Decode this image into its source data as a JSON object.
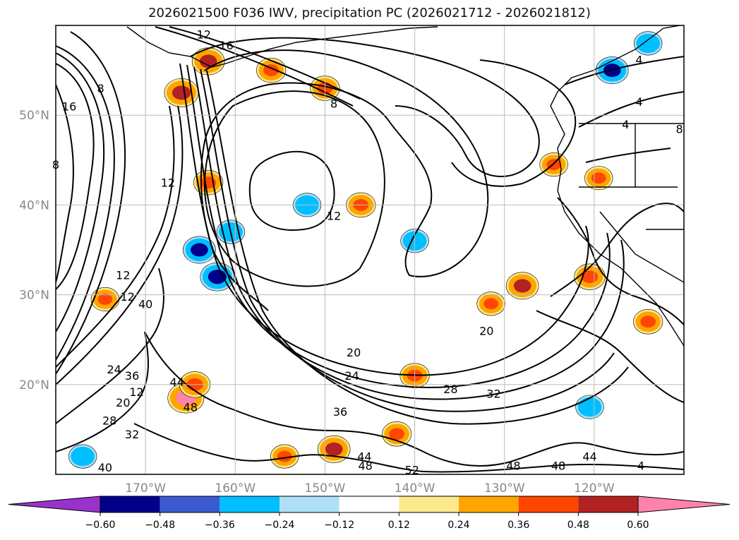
{
  "chart_data": {
    "type": "heatmap",
    "title": "2026021500 F036 IWV, precipitation PC (2026021712 - 2026021812)",
    "projection": "map",
    "lon_range": [
      -180,
      -110
    ],
    "lat_range": [
      10,
      60
    ],
    "lon_ticks": [
      "170°W",
      "160°W",
      "150°W",
      "140°W",
      "130°W",
      "120°W"
    ],
    "lon_tick_values": [
      -170,
      -160,
      -150,
      -140,
      -130,
      -120
    ],
    "lat_ticks": [
      "50°N",
      "40°N",
      "30°N",
      "20°N"
    ],
    "lat_tick_values": [
      50,
      40,
      30,
      20
    ],
    "grid": true,
    "colorbar": {
      "orientation": "horizontal",
      "extend": "both",
      "levels": [
        -0.6,
        -0.48,
        -0.36,
        -0.24,
        -0.12,
        0.12,
        0.24,
        0.36,
        0.48,
        0.6
      ],
      "tick_labels": [
        "−0.60",
        "−0.48",
        "−0.36",
        "−0.24",
        "−0.12",
        "0.12",
        "0.24",
        "0.36",
        "0.48",
        "0.60"
      ],
      "colors": [
        "#9932CC",
        "#00008B",
        "#3A5BD0",
        "#00BFFF",
        "#ADE0F7",
        "#FFFFFF",
        "#FCE98C",
        "#FFA500",
        "#FF4500",
        "#B22222",
        "#FF82AB"
      ]
    },
    "contour_labels": [
      "12",
      "16",
      "8",
      "4",
      "4",
      "4",
      "8",
      "12",
      "12",
      "16",
      "8",
      "8",
      "12",
      "12",
      "12",
      "40",
      "36",
      "24",
      "20",
      "28",
      "32",
      "44",
      "48",
      "40",
      "20",
      "24",
      "28",
      "32",
      "36",
      "20",
      "44",
      "48",
      "52",
      "48",
      "48",
      "44",
      "4"
    ],
    "contour_label_lonlat": [
      [
        -163.5,
        59
      ],
      [
        -161,
        57.8
      ],
      [
        -149,
        51.3
      ],
      [
        -115,
        56.2
      ],
      [
        -115,
        51.5
      ],
      [
        -116.5,
        49
      ],
      [
        -110.5,
        48.5
      ],
      [
        -167.5,
        42.5
      ],
      [
        -149,
        38.8
      ],
      [
        -178.5,
        51
      ],
      [
        -175,
        53
      ],
      [
        -180,
        44.5
      ],
      [
        -172.5,
        32.2
      ],
      [
        -172,
        29.8
      ],
      [
        -171,
        19.2
      ],
      [
        -170,
        29
      ],
      [
        -171.5,
        21
      ],
      [
        -173.5,
        21.7
      ],
      [
        -172.5,
        18
      ],
      [
        -174,
        16
      ],
      [
        -171.5,
        14.5
      ],
      [
        -166.5,
        20.3
      ],
      [
        -165,
        17.5
      ],
      [
        -174.5,
        10.8
      ],
      [
        -132,
        26
      ],
      [
        -147,
        21
      ],
      [
        -136,
        19.5
      ],
      [
        -131.2,
        19
      ],
      [
        -148.3,
        17
      ],
      [
        -146.8,
        23.6
      ],
      [
        -145.6,
        12
      ],
      [
        -145.5,
        11
      ],
      [
        -140.3,
        10.5
      ],
      [
        -129,
        11
      ],
      [
        -124,
        11
      ],
      [
        -120.5,
        12
      ],
      [
        -114.8,
        11
      ]
    ],
    "precip_patches": [
      {
        "lon": -163,
        "lat": 56,
        "value": 0.5
      },
      {
        "lon": -166,
        "lat": 52.5,
        "value": 0.55
      },
      {
        "lon": -156,
        "lat": 55,
        "value": 0.4
      },
      {
        "lon": -150,
        "lat": 53,
        "value": 0.4
      },
      {
        "lon": -174.5,
        "lat": 29.5,
        "value": 0.36
      },
      {
        "lon": -163,
        "lat": 42.5,
        "value": 0.4
      },
      {
        "lon": -140,
        "lat": 21,
        "value": 0.4
      },
      {
        "lon": -146,
        "lat": 40,
        "value": 0.4
      },
      {
        "lon": -128,
        "lat": 31,
        "value": 0.5
      },
      {
        "lon": -120.5,
        "lat": 32,
        "value": 0.45
      },
      {
        "lon": -119.5,
        "lat": 43,
        "value": 0.36
      },
      {
        "lon": -124.5,
        "lat": 44.5,
        "value": 0.36
      },
      {
        "lon": -164,
        "lat": 35,
        "value": -0.5
      },
      {
        "lon": -162,
        "lat": 32,
        "value": -0.55
      },
      {
        "lon": -160.5,
        "lat": 37,
        "value": -0.36
      },
      {
        "lon": -118,
        "lat": 55,
        "value": -0.5
      },
      {
        "lon": -114,
        "lat": 58,
        "value": -0.36
      },
      {
        "lon": -152,
        "lat": 40,
        "value": -0.36
      },
      {
        "lon": -140,
        "lat": 36,
        "value": -0.36
      },
      {
        "lon": -165.5,
        "lat": 18.5,
        "value": 0.62
      },
      {
        "lon": -164.5,
        "lat": 20,
        "value": 0.45
      },
      {
        "lon": -149,
        "lat": 12.8,
        "value": 0.5
      },
      {
        "lon": -142,
        "lat": 14.5,
        "value": 0.4
      },
      {
        "lon": -154.5,
        "lat": 12,
        "value": 0.36
      },
      {
        "lon": -120.5,
        "lat": 17.5,
        "value": -0.36
      },
      {
        "lon": -177,
        "lat": 12,
        "value": -0.36
      },
      {
        "lon": -131.5,
        "lat": 29,
        "value": 0.36
      },
      {
        "lon": -114,
        "lat": 27,
        "value": 0.4
      }
    ]
  }
}
